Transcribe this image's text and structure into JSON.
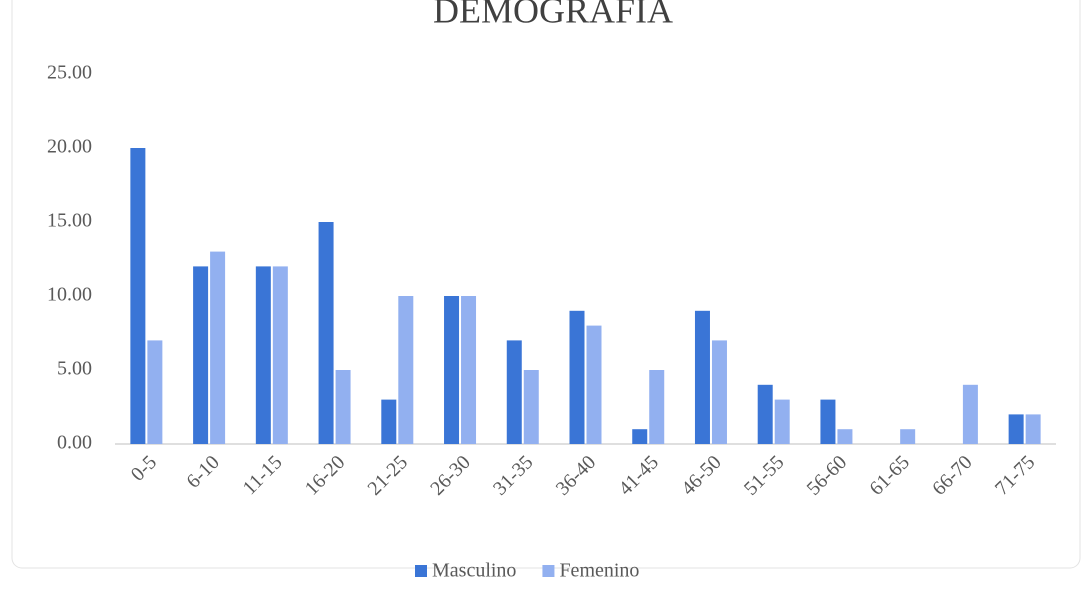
{
  "chart_data": {
    "type": "bar",
    "title": "DEMOGRAFÍA",
    "categories": [
      "0-5",
      "6-10",
      "11-15",
      "16-20",
      "21-25",
      "26-30",
      "31-35",
      "36-40",
      "41-45",
      "46-50",
      "51-55",
      "56-60",
      "61-65",
      "66-70",
      "71-75"
    ],
    "series": [
      {
        "name": "Masculino",
        "color": "#3a75d6",
        "values": [
          20,
          12,
          12,
          15,
          3,
          10,
          7,
          9,
          1,
          9,
          4,
          3,
          0,
          0,
          2
        ]
      },
      {
        "name": "Femenino",
        "color": "#92b0f0",
        "values": [
          7,
          13,
          12,
          5,
          10,
          10,
          5,
          8,
          5,
          7,
          3,
          1,
          1,
          4,
          2
        ]
      }
    ],
    "ylim": [
      0,
      25
    ],
    "yticks": [
      {
        "value": 0,
        "label": "0.00"
      },
      {
        "value": 5,
        "label": "5.00"
      },
      {
        "value": 10,
        "label": "10.00"
      },
      {
        "value": 15,
        "label": "15.00"
      },
      {
        "value": 20,
        "label": "20.00"
      },
      {
        "value": 25,
        "label": "25.00"
      }
    ],
    "grid": false,
    "legend": "bottom"
  }
}
